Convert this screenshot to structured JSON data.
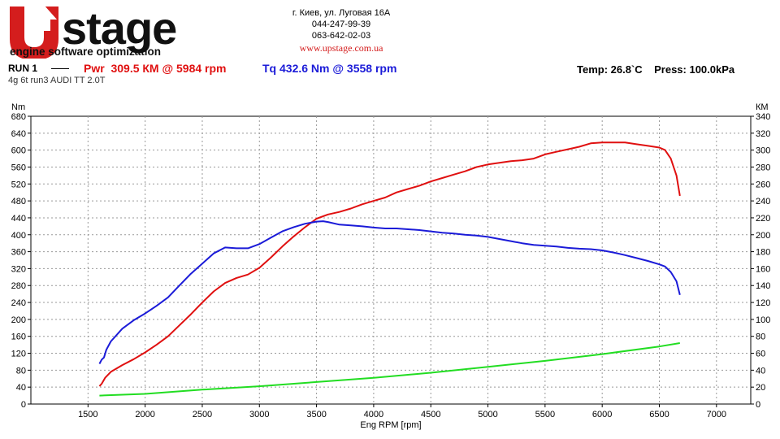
{
  "header": {
    "logo_text_main": "UPstage",
    "logo_tagline": "engine software optimization",
    "address": "г. Киев, ул. Луговая 16А",
    "phone1": "044-247-99-39",
    "phone2": "063-642-02-03",
    "website": "www.upstage.com.ua"
  },
  "run": {
    "label": "RUN 1",
    "pwr_text": "Pwr  309.5 КМ @ 5984 rpm",
    "tq_text": "Tq 432.6 Nm @ 3558 rpm",
    "conditions": "Temp: 26.8`C    Press: 100.0kPa",
    "description": "4g 6t run3 AUDI TT 2.0T"
  },
  "colors": {
    "power": "#e01010",
    "torque": "#1b1bd8",
    "wheel": "#22dd22",
    "logo_red": "#d41d1d",
    "grid": "#999999"
  },
  "chart_data": {
    "type": "line",
    "xlabel": "Eng RPM [rpm]",
    "ylabel": "Nm",
    "y2label": "КМ",
    "xlim": [
      1000,
      7300
    ],
    "xticks": [
      1500,
      2000,
      2500,
      3000,
      3500,
      4000,
      4500,
      5000,
      5500,
      6000,
      6500,
      7000
    ],
    "ylim": [
      0,
      680
    ],
    "yticks": [
      0,
      40,
      80,
      120,
      160,
      200,
      240,
      280,
      320,
      360,
      400,
      440,
      480,
      520,
      560,
      600,
      640,
      680
    ],
    "y2lim": [
      0,
      340
    ],
    "y2ticks": [
      0,
      20,
      40,
      60,
      80,
      100,
      120,
      140,
      160,
      180,
      200,
      220,
      240,
      260,
      280,
      300,
      320,
      340
    ],
    "grid": true,
    "series": [
      {
        "name": "Pwr",
        "axis": "right",
        "color": "#e01010",
        "x": [
          1600,
          1620,
          1650,
          1700,
          1800,
          1900,
          2000,
          2100,
          2200,
          2300,
          2400,
          2500,
          2600,
          2700,
          2800,
          2900,
          3000,
          3100,
          3200,
          3300,
          3400,
          3500,
          3600,
          3700,
          3800,
          3900,
          4000,
          4100,
          4200,
          4300,
          4400,
          4500,
          4600,
          4700,
          4800,
          4900,
          5000,
          5100,
          5200,
          5300,
          5400,
          5500,
          5600,
          5700,
          5800,
          5900,
          6000,
          6100,
          6200,
          6300,
          6400,
          6500,
          6550,
          6600,
          6650,
          6680
        ],
        "values": [
          21,
          24,
          31,
          38,
          46,
          53,
          61,
          70,
          80,
          93,
          106,
          120,
          133,
          143,
          149,
          153,
          161,
          173,
          186,
          198,
          209,
          219,
          224,
          227,
          231,
          236,
          240,
          244,
          250,
          254,
          258,
          263,
          267,
          271,
          275,
          280,
          283,
          285,
          287,
          288,
          290,
          295,
          298,
          301,
          304,
          308,
          309,
          309,
          309,
          307,
          305,
          303,
          300,
          290,
          270,
          246
        ]
      },
      {
        "name": "Tq",
        "axis": "left",
        "color": "#1b1bd8",
        "x": [
          1600,
          1620,
          1640,
          1660,
          1700,
          1800,
          1900,
          2000,
          2100,
          2200,
          2300,
          2400,
          2500,
          2600,
          2700,
          2800,
          2900,
          3000,
          3100,
          3200,
          3300,
          3400,
          3500,
          3558,
          3600,
          3700,
          3800,
          3900,
          4000,
          4100,
          4200,
          4300,
          4400,
          4500,
          4600,
          4700,
          4800,
          4900,
          5000,
          5100,
          5200,
          5300,
          5400,
          5500,
          5600,
          5700,
          5800,
          5900,
          6000,
          6100,
          6200,
          6300,
          6400,
          6500,
          6550,
          6600,
          6650,
          6680
        ],
        "values": [
          95,
          105,
          110,
          128,
          148,
          178,
          198,
          214,
          232,
          252,
          280,
          308,
          332,
          356,
          370,
          368,
          368,
          378,
          393,
          408,
          418,
          426,
          431,
          432,
          430,
          424,
          422,
          420,
          417,
          415,
          415,
          413,
          411,
          408,
          405,
          403,
          400,
          398,
          395,
          390,
          385,
          380,
          376,
          374,
          372,
          369,
          367,
          366,
          363,
          358,
          352,
          345,
          338,
          330,
          325,
          312,
          290,
          258
        ]
      },
      {
        "name": "",
        "axis": "right",
        "color": "#22dd22",
        "x": [
          1600,
          2000,
          2500,
          3000,
          3500,
          4000,
          4500,
          5000,
          5500,
          6000,
          6500,
          6680
        ],
        "values": [
          10,
          12,
          17,
          21,
          26,
          31,
          37,
          44,
          51,
          59,
          68,
          72
        ]
      }
    ]
  }
}
